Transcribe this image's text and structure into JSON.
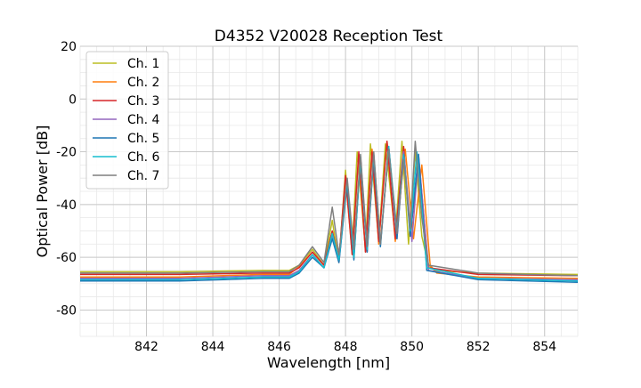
{
  "chart_data": {
    "type": "line",
    "title": "D4352 V20028 Reception Test",
    "xlabel": "Wavelength [nm]",
    "ylabel": "Optical Power [dB]",
    "xlim": [
      840,
      855
    ],
    "ylim": [
      -90,
      20
    ],
    "xticks": [
      842,
      844,
      846,
      848,
      850,
      852,
      854
    ],
    "yticks": [
      -80,
      -60,
      -40,
      -20,
      0,
      20
    ],
    "grid": true,
    "legend_position": "top-left",
    "series": [
      {
        "name": "Ch. 1",
        "color": "#bcbd22",
        "x": [
          840.0,
          843.0,
          845.5,
          846.3,
          846.6,
          847.0,
          847.35,
          847.6,
          847.8,
          848.0,
          848.2,
          848.35,
          848.6,
          848.75,
          849.0,
          849.2,
          849.5,
          849.7,
          849.9,
          850.1,
          850.3,
          850.5,
          850.7,
          852.0,
          855.0
        ],
        "y": [
          -65.5,
          -65.5,
          -65.0,
          -65.0,
          -63.0,
          -57.0,
          -63.0,
          -46.0,
          -62.0,
          -27.0,
          -57.0,
          -20.0,
          -57.0,
          -17.0,
          -54.0,
          -17.0,
          -52.0,
          -16.0,
          -55.0,
          -20.0,
          -52.0,
          -63.0,
          -65.0,
          -66.0,
          -66.5
        ]
      },
      {
        "name": "Ch. 2",
        "color": "#ff7f0e",
        "x": [
          840.0,
          843.0,
          845.5,
          846.3,
          846.6,
          847.0,
          847.35,
          847.6,
          847.8,
          848.0,
          848.2,
          848.4,
          848.6,
          848.8,
          849.0,
          849.25,
          849.5,
          849.8,
          850.05,
          850.3,
          850.55,
          850.75,
          852.0,
          855.0
        ],
        "y": [
          -67.5,
          -67.5,
          -66.5,
          -66.5,
          -63.5,
          -58.0,
          -63.0,
          -50.0,
          -61.0,
          -30.0,
          -59.0,
          -21.0,
          -58.0,
          -19.0,
          -55.0,
          -16.0,
          -54.0,
          -19.0,
          -53.0,
          -25.0,
          -63.0,
          -66.0,
          -67.5,
          -68.0
        ]
      },
      {
        "name": "Ch. 3",
        "color": "#d62728",
        "x": [
          840.0,
          843.0,
          845.5,
          846.3,
          846.6,
          847.0,
          847.35,
          847.6,
          847.8,
          848.0,
          848.2,
          848.4,
          848.6,
          848.8,
          849.0,
          849.25,
          849.5,
          849.75,
          849.95,
          850.2,
          850.5,
          852.0,
          855.0
        ],
        "y": [
          -66.5,
          -66.5,
          -66.0,
          -66.0,
          -64.0,
          -58.0,
          -63.0,
          -50.0,
          -61.0,
          -29.0,
          -59.0,
          -20.0,
          -58.0,
          -20.0,
          -54.0,
          -16.0,
          -53.0,
          -18.0,
          -52.0,
          -22.0,
          -64.0,
          -66.5,
          -67.0
        ]
      },
      {
        "name": "Ch. 4",
        "color": "#9467bd",
        "x": [
          840.0,
          843.0,
          845.5,
          846.3,
          846.6,
          847.0,
          847.35,
          847.6,
          847.8,
          848.05,
          848.25,
          848.45,
          848.65,
          848.85,
          849.05,
          849.3,
          849.55,
          849.75,
          850.0,
          850.2,
          850.5,
          852.0,
          855.0
        ],
        "y": [
          -68.0,
          -68.0,
          -67.0,
          -67.0,
          -65.0,
          -59.0,
          -64.0,
          -52.0,
          -62.0,
          -31.0,
          -60.0,
          -22.0,
          -58.0,
          -21.0,
          -55.0,
          -18.0,
          -53.0,
          -20.0,
          -54.0,
          -21.0,
          -65.0,
          -68.0,
          -68.5
        ]
      },
      {
        "name": "Ch. 5",
        "color": "#1f77b4",
        "x": [
          840.0,
          843.0,
          845.5,
          846.3,
          846.6,
          847.0,
          847.35,
          847.6,
          847.8,
          848.05,
          848.25,
          848.45,
          848.65,
          848.85,
          849.05,
          849.3,
          849.55,
          849.75,
          849.95,
          850.2,
          850.45,
          852.0,
          855.0
        ],
        "y": [
          -69.0,
          -69.0,
          -68.0,
          -68.0,
          -66.0,
          -60.0,
          -64.0,
          -53.0,
          -62.0,
          -32.0,
          -61.0,
          -22.0,
          -58.0,
          -22.0,
          -56.0,
          -18.0,
          -53.0,
          -21.0,
          -52.0,
          -21.0,
          -65.0,
          -68.5,
          -69.5
        ]
      },
      {
        "name": "Ch. 6",
        "color": "#17becf",
        "x": [
          840.0,
          843.0,
          845.5,
          846.3,
          846.6,
          847.0,
          847.35,
          847.6,
          847.8,
          848.05,
          848.25,
          848.45,
          848.65,
          848.85,
          849.05,
          849.3,
          849.55,
          849.75,
          849.95,
          850.15,
          850.45,
          852.0,
          855.0
        ],
        "y": [
          -68.5,
          -68.5,
          -67.5,
          -67.5,
          -65.5,
          -59.0,
          -64.0,
          -51.0,
          -61.0,
          -31.0,
          -60.0,
          -23.0,
          -57.0,
          -21.0,
          -55.0,
          -18.0,
          -50.0,
          -21.0,
          -50.0,
          -20.0,
          -64.0,
          -68.0,
          -69.0
        ]
      },
      {
        "name": "Ch. 7",
        "color": "#7f7f7f",
        "x": [
          840.0,
          843.0,
          845.5,
          846.3,
          846.6,
          847.0,
          847.35,
          847.6,
          847.8,
          848.05,
          848.25,
          848.45,
          848.65,
          848.85,
          849.05,
          849.3,
          849.55,
          849.75,
          849.95,
          850.1,
          850.3,
          850.5,
          852.0,
          855.0
        ],
        "y": [
          -66.0,
          -66.0,
          -65.5,
          -65.5,
          -63.0,
          -56.0,
          -62.0,
          -41.0,
          -59.0,
          -30.0,
          -57.0,
          -21.0,
          -56.0,
          -20.0,
          -55.0,
          -19.0,
          -51.0,
          -23.0,
          -49.0,
          -16.0,
          -45.0,
          -63.0,
          -66.0,
          -67.0
        ]
      }
    ]
  }
}
